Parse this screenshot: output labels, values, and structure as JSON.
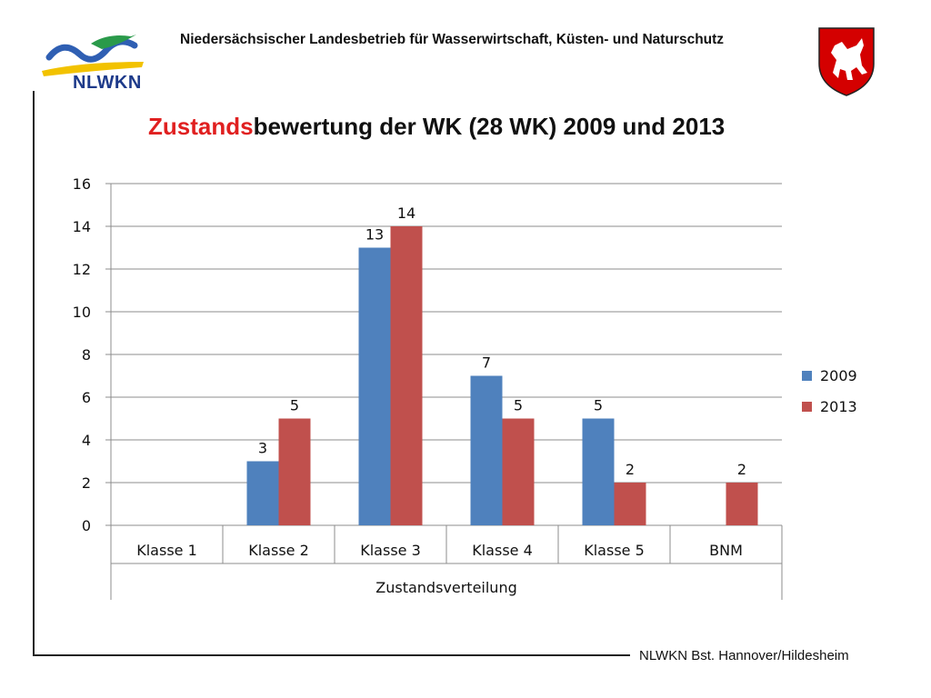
{
  "header": {
    "organization": "Niedersächsischer Landesbetrieb für Wasserwirtschaft, Küsten- und Naturschutz",
    "logo_text": "NLWKN"
  },
  "title": {
    "highlight": "Zustands",
    "rest": "bewertung der WK (28 WK) 2009 und 2013"
  },
  "footer": {
    "text": "NLWKN Bst. Hannover/Hildesheim"
  },
  "colors": {
    "series_2009": "#4f81bd",
    "series_2013": "#c0504d",
    "title_highlight": "#e02020"
  },
  "chart_data": {
    "type": "bar",
    "categories": [
      "Klasse 1",
      "Klasse 2",
      "Klasse 3",
      "Klasse 4",
      "Klasse 5",
      "BNM"
    ],
    "category_group_label": "Zustandsverteilung",
    "series": [
      {
        "name": "2009",
        "values": [
          0,
          3,
          13,
          7,
          5,
          0
        ],
        "labels": [
          "",
          "3",
          "13",
          "7",
          "5",
          ""
        ]
      },
      {
        "name": "2013",
        "values": [
          0,
          5,
          14,
          5,
          2,
          2
        ],
        "labels": [
          "",
          "5",
          "14",
          "5",
          "2",
          "2"
        ]
      }
    ],
    "ylim": [
      0,
      16
    ],
    "yticks": [
      0,
      2,
      4,
      6,
      8,
      10,
      12,
      14,
      16
    ],
    "grid": true,
    "legend_position": "right"
  }
}
